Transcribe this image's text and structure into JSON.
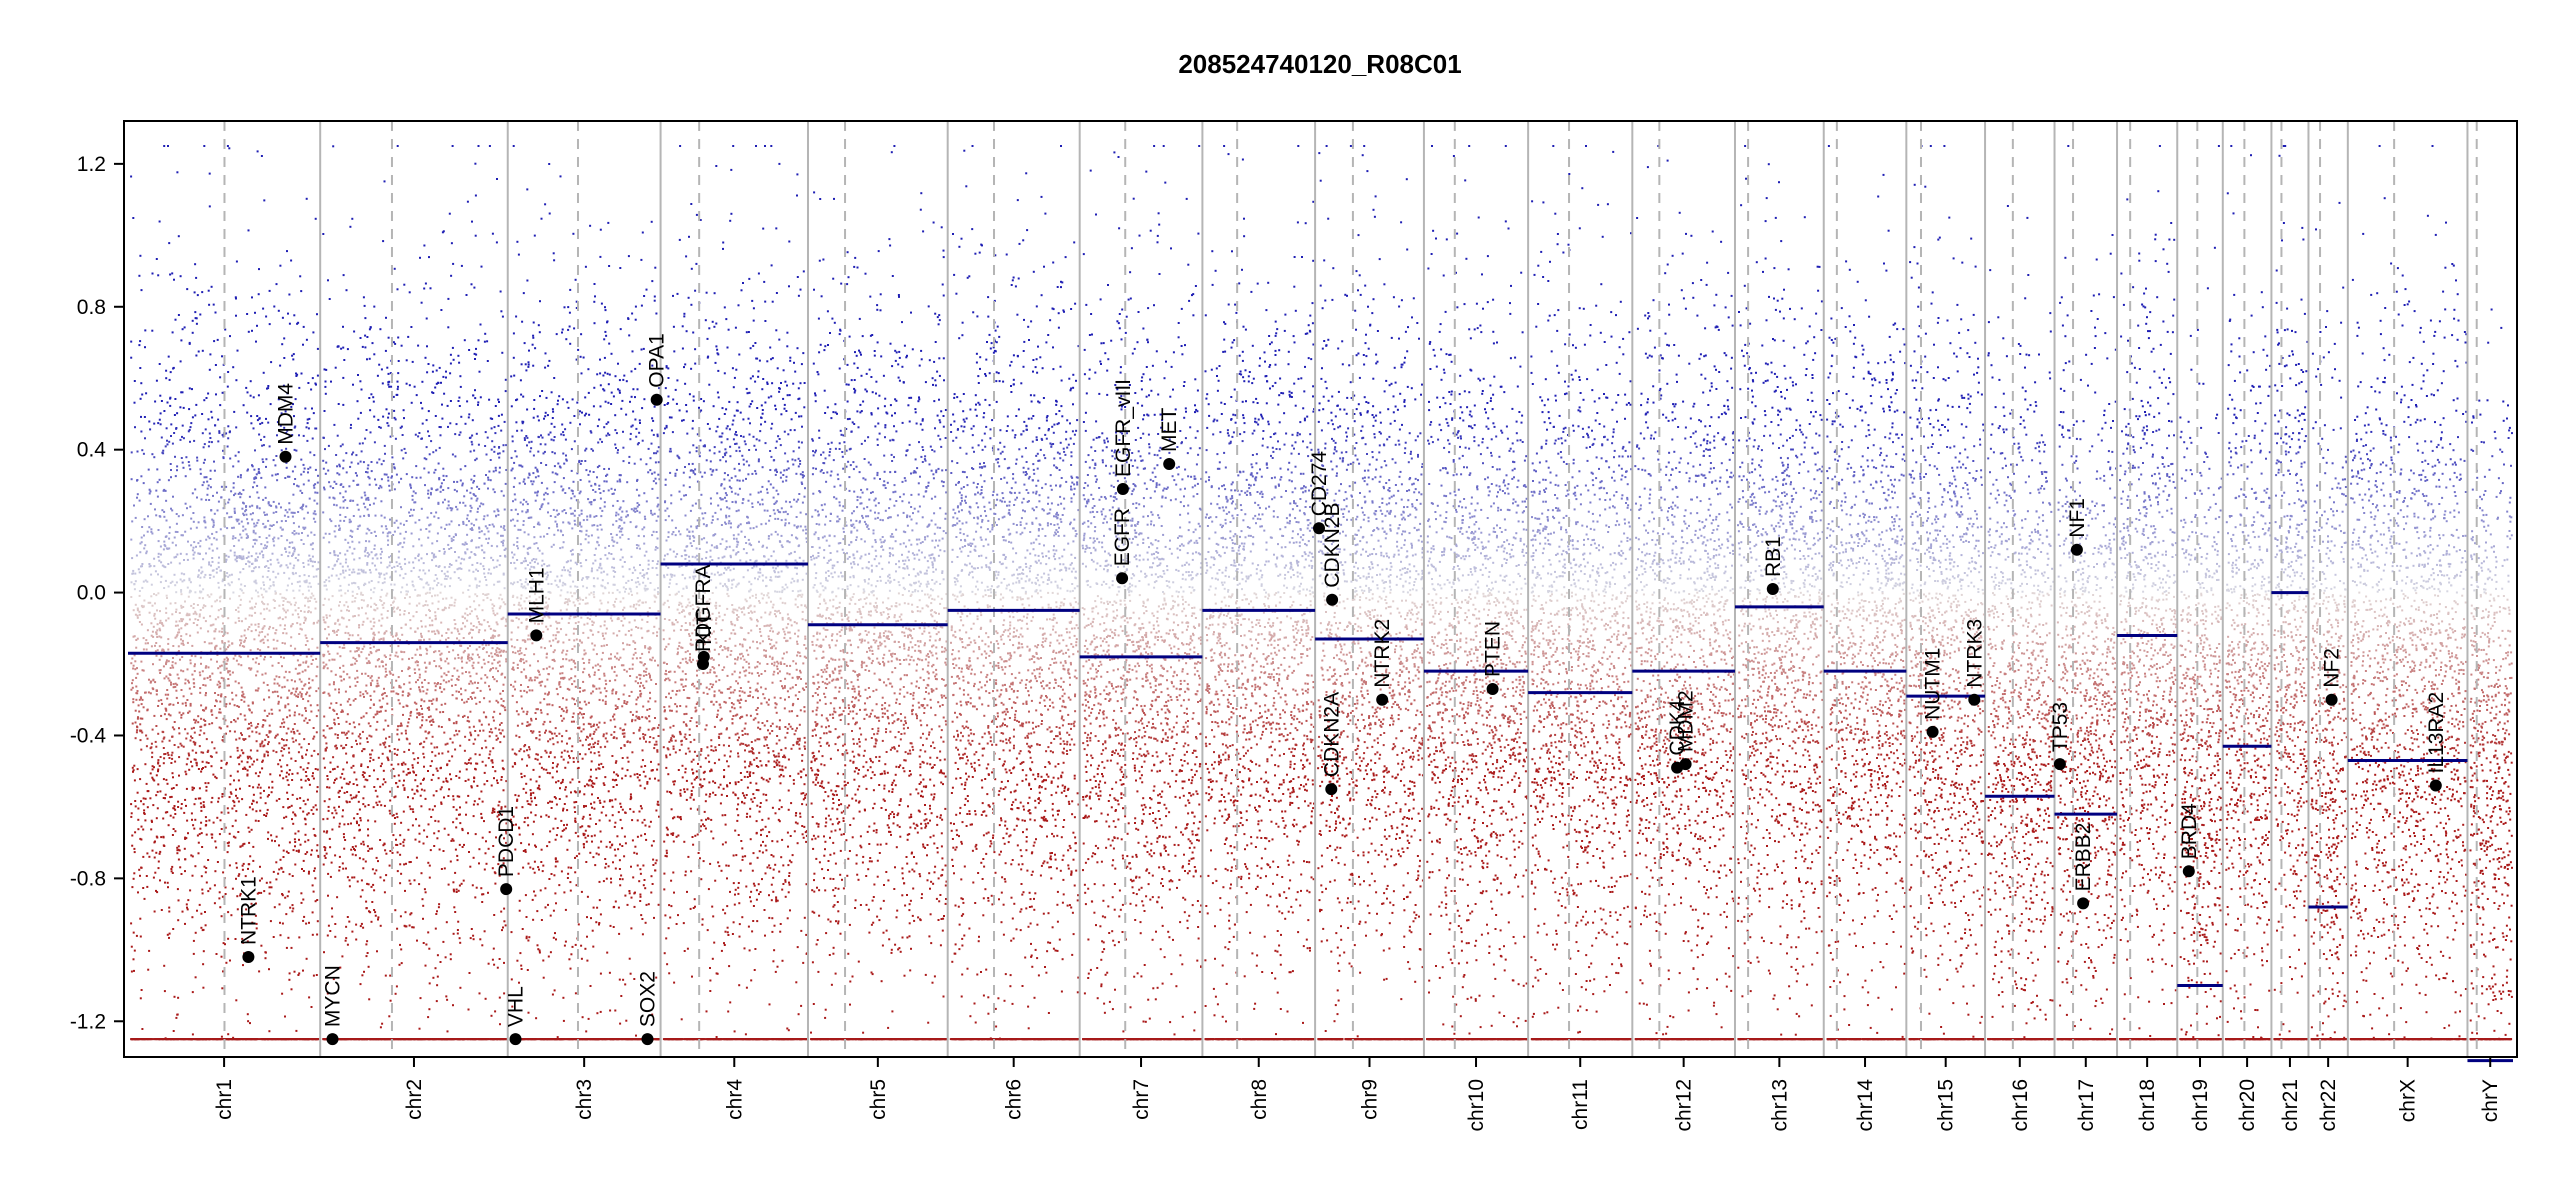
{
  "chart_data": {
    "type": "scatter",
    "title": "208524740120_R08C01",
    "xlabel": "",
    "ylabel": "",
    "ylim": [
      -1.3,
      1.32
    ],
    "y_ticks": [
      "1.2",
      "0.8",
      "0.4",
      "0.0",
      "-0.4",
      "-0.8",
      "-1.2"
    ],
    "y_tick_values": [
      1.2,
      0.8,
      0.4,
      0.0,
      -0.4,
      -0.8,
      -1.2
    ],
    "colors": {
      "gain": "#1a1aa6",
      "loss": "#a61a1a",
      "segment": "#000080",
      "gene": "#000000",
      "grid": "#b5b5b5"
    },
    "chromosomes": [
      {
        "name": "chr1",
        "len": 249,
        "centro": 125,
        "seg": -0.17
      },
      {
        "name": "chr2",
        "len": 243,
        "centro": 93,
        "seg": -0.14
      },
      {
        "name": "chr3",
        "len": 198,
        "centro": 91,
        "seg": -0.06
      },
      {
        "name": "chr4",
        "len": 191,
        "centro": 50,
        "seg": 0.08
      },
      {
        "name": "chr5",
        "len": 181,
        "centro": 48,
        "seg": -0.09
      },
      {
        "name": "chr6",
        "len": 171,
        "centro": 60,
        "seg": -0.05
      },
      {
        "name": "chr7",
        "len": 159,
        "centro": 59,
        "seg": -0.18
      },
      {
        "name": "chr8",
        "len": 146,
        "centro": 45,
        "seg": -0.05
      },
      {
        "name": "chr9",
        "len": 141,
        "centro": 49,
        "seg": -0.13
      },
      {
        "name": "chr10",
        "len": 135,
        "centro": 40,
        "seg": -0.22
      },
      {
        "name": "chr11",
        "len": 135,
        "centro": 53,
        "seg": -0.28
      },
      {
        "name": "chr12",
        "len": 133,
        "centro": 35,
        "seg": -0.22
      },
      {
        "name": "chr13",
        "len": 115,
        "centro": 17,
        "seg": -0.04
      },
      {
        "name": "chr14",
        "len": 107,
        "centro": 17,
        "seg": -0.22
      },
      {
        "name": "chr15",
        "len": 102,
        "centro": 19,
        "seg": -0.29
      },
      {
        "name": "chr16",
        "len": 90,
        "centro": 36,
        "seg": -0.57
      },
      {
        "name": "chr17",
        "len": 81,
        "centro": 24,
        "seg": -0.62
      },
      {
        "name": "chr18",
        "len": 78,
        "centro": 17,
        "seg": -0.12
      },
      {
        "name": "chr19",
        "len": 59,
        "centro": 26,
        "seg": -1.1
      },
      {
        "name": "chr20",
        "len": 63,
        "centro": 28,
        "seg": -0.43
      },
      {
        "name": "chr21",
        "len": 48,
        "centro": 13,
        "seg": 0.0
      },
      {
        "name": "chr22",
        "len": 51,
        "centro": 15,
        "seg": -0.88
      },
      {
        "name": "chrX",
        "len": 155,
        "centro": 60,
        "seg": -0.47
      },
      {
        "name": "chrY",
        "len": 59,
        "centro": 12,
        "seg": -1.31
      }
    ],
    "genes": [
      {
        "name": "NTRK1",
        "chr": "chr1",
        "pos": 156,
        "value": -1.02
      },
      {
        "name": "MDM4",
        "chr": "chr1",
        "pos": 204,
        "value": 0.38
      },
      {
        "name": "MYCN",
        "chr": "chr2",
        "pos": 16,
        "value": -1.25
      },
      {
        "name": "VHL",
        "chr": "chr3",
        "pos": 10,
        "value": -1.25
      },
      {
        "name": "PDCD1",
        "chr": "chr2",
        "pos": 241,
        "value": -0.83
      },
      {
        "name": "MLH1",
        "chr": "chr3",
        "pos": 37,
        "value": -0.12
      },
      {
        "name": "SOX2",
        "chr": "chr3",
        "pos": 181,
        "value": -1.25
      },
      {
        "name": "OPA1",
        "chr": "chr3",
        "pos": 193,
        "value": 0.54
      },
      {
        "name": "PDGFRA",
        "chr": "chr4",
        "pos": 55,
        "value": -0.2
      },
      {
        "name": "KIT",
        "chr": "chr4",
        "pos": 56,
        "value": -0.18
      },
      {
        "name": "EGFR",
        "chr": "chr7",
        "pos": 55,
        "value": 0.04
      },
      {
        "name": "EGFR_vIII",
        "chr": "chr7",
        "pos": 56,
        "value": 0.29
      },
      {
        "name": "MET",
        "chr": "chr7",
        "pos": 116,
        "value": 0.36
      },
      {
        "name": "CD274",
        "chr": "chr9",
        "pos": 5,
        "value": 0.18
      },
      {
        "name": "CDKN2A",
        "chr": "chr9",
        "pos": 21,
        "value": -0.55
      },
      {
        "name": "CDKN2B",
        "chr": "chr9",
        "pos": 22,
        "value": -0.02
      },
      {
        "name": "NTRK2",
        "chr": "chr9",
        "pos": 87,
        "value": -0.3
      },
      {
        "name": "PTEN",
        "chr": "chr10",
        "pos": 89,
        "value": -0.27
      },
      {
        "name": "CDK4",
        "chr": "chr12",
        "pos": 58,
        "value": -0.49
      },
      {
        "name": "MDM2",
        "chr": "chr12",
        "pos": 69,
        "value": -0.48
      },
      {
        "name": "RB1",
        "chr": "chr13",
        "pos": 49,
        "value": 0.01
      },
      {
        "name": "NUTM1",
        "chr": "chr15",
        "pos": 34,
        "value": -0.39
      },
      {
        "name": "NTRK3",
        "chr": "chr15",
        "pos": 88,
        "value": -0.3
      },
      {
        "name": "TP53",
        "chr": "chr17",
        "pos": 7,
        "value": -0.48
      },
      {
        "name": "NF1",
        "chr": "chr17",
        "pos": 29,
        "value": 0.12
      },
      {
        "name": "ERBB2",
        "chr": "chr17",
        "pos": 37,
        "value": -0.87
      },
      {
        "name": "BRD4",
        "chr": "chr19",
        "pos": 15,
        "value": -0.78
      },
      {
        "name": "NF2",
        "chr": "chr22",
        "pos": 30,
        "value": -0.3
      },
      {
        "name": "IL13RA2",
        "chr": "chrX",
        "pos": 114,
        "value": -0.54
      }
    ]
  }
}
